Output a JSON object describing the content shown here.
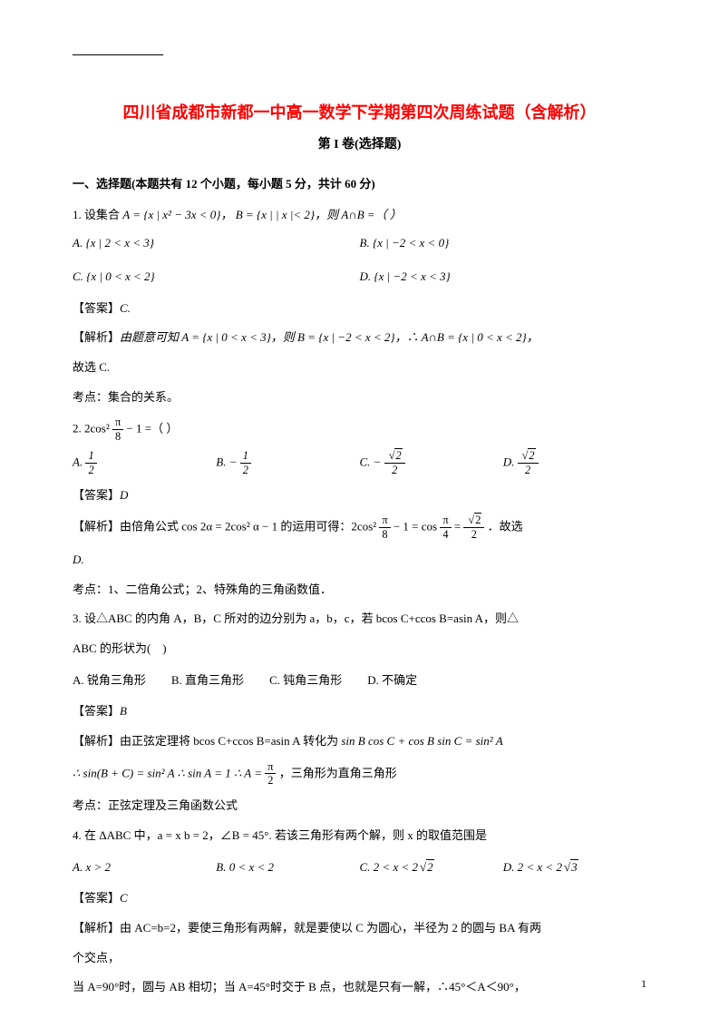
{
  "colors": {
    "title": "#ff0000",
    "text": "#000000",
    "background": "#ffffff"
  },
  "fonts": {
    "title_size": 18,
    "subtitle_size": 14,
    "body_size": 13,
    "family": "SimSun"
  },
  "page_number": "1",
  "title": "四川省成都市新都一中高一数学下学期第四次周练试题（含解析）",
  "subtitle": "第 I 卷(选择题)",
  "section_heading": "一、选择题(本题共有 12 个小题，每小题 5 分，共计 60 分)",
  "q1": {
    "stem_prefix": "1. 设集合 ",
    "stem_math": "A = {x | x² − 3x < 0}， B = {x | | x |< 2}，则 A∩B =（  ）",
    "optA_label": "A. ",
    "optA": "{x | 2 < x < 3}",
    "optB_label": "B. ",
    "optB": "{x | −2 < x < 0}",
    "optC_label": "C. ",
    "optC": "{x | 0 < x < 2}",
    "optD_label": "D. ",
    "optD": "{x | −2 < x < 3}",
    "answer_label": "【答案】",
    "answer": "C.",
    "analysis_label": "【解析】",
    "analysis_1": "由题意可知 A = {x | 0 < x < 3}，则 B = {x | −2 < x < 2}，∴ A∩B = {x | 0 < x < 2}，",
    "analysis_2": "故选 C.",
    "topic": "考点：集合的关系。"
  },
  "q2": {
    "stem_prefix": "2.  ",
    "stem_math_before": "2cos²",
    "stem_frac_num": "π",
    "stem_frac_den": "8",
    "stem_math_after": " − 1 =（  ）",
    "optA_label": "A. ",
    "optA_num": "1",
    "optA_den": "2",
    "optB_label": "B. ",
    "optB_prefix": "− ",
    "optB_num": "1",
    "optB_den": "2",
    "optC_label": "C. ",
    "optC_prefix": "− ",
    "optC_num_rad": "2",
    "optC_den": "2",
    "optD_label": "D. ",
    "optD_num_rad": "2",
    "optD_den": "2",
    "answer_label": "【答案】",
    "answer": "D",
    "analysis_label": "【解析】",
    "analysis_before": "由倍角公式 cos 2α = 2cos² α − 1 的运用可得：2cos²",
    "analysis_f1_num": "π",
    "analysis_f1_den": "8",
    "analysis_mid1": " − 1 = cos",
    "analysis_f2_num": "π",
    "analysis_f2_den": "4",
    "analysis_mid2": " = ",
    "analysis_f3_num_rad": "2",
    "analysis_f3_den": "2",
    "analysis_after": "．故选",
    "analysis_2": "D.",
    "topic": "考点：1、二倍角公式；2、特殊角的三角函数值．"
  },
  "q3": {
    "stem_1": "3. 设△ABC 的内角 A，B，C 所对的边分别为 a，b，c，若 bcos C+ccos B=asin A，则△",
    "stem_2": "ABC 的形状为(　)",
    "optA": "A. 锐角三角形",
    "optB": "B. 直角三角形",
    "optC": "C. 钝角三角形",
    "optD": "D. 不确定",
    "answer_label": "【答案】",
    "answer": "B",
    "analysis_label": "【解析】",
    "analysis_1_before": "由正弦定理将 bcos C+ccos B=asin A 转化为 ",
    "analysis_1_math": "sin B cos C + cos B sin C = sin² A",
    "analysis_2_before": "∴ sin(B + C) = sin² A ∴ sin A = 1 ∴ A = ",
    "analysis_2_num": "π",
    "analysis_2_den": "2",
    "analysis_2_after": "，三角形为直角三角形",
    "topic": "考点：正弦定理及三角函数公式"
  },
  "q4": {
    "stem": "4. 在 ΔABC 中，a = x  b = 2，∠B = 45°. 若该三角形有两个解，则 x 的取值范围是",
    "optA_label": "A. ",
    "optA": "x > 2",
    "optB_label": "B. ",
    "optB": "0 < x < 2",
    "optC_label": "C. ",
    "optC_before": "2 < x < 2",
    "optC_rad": "2",
    "optD_label": "D. ",
    "optD_before": "2 < x < 2",
    "optD_rad": "3",
    "answer_label": "【答案】",
    "answer": "C",
    "analysis_label": "【解析】",
    "analysis_1": "由 AC=b=2，要使三角形有两解，就是要使以 C 为圆心，半径为 2 的圆与 BA 有两",
    "analysis_2": "个交点，",
    "analysis_3": "当 A=90°时，圆与 AB 相切；当 A=45°时交于 B 点，也就是只有一解，∴45°＜A＜90°，"
  }
}
